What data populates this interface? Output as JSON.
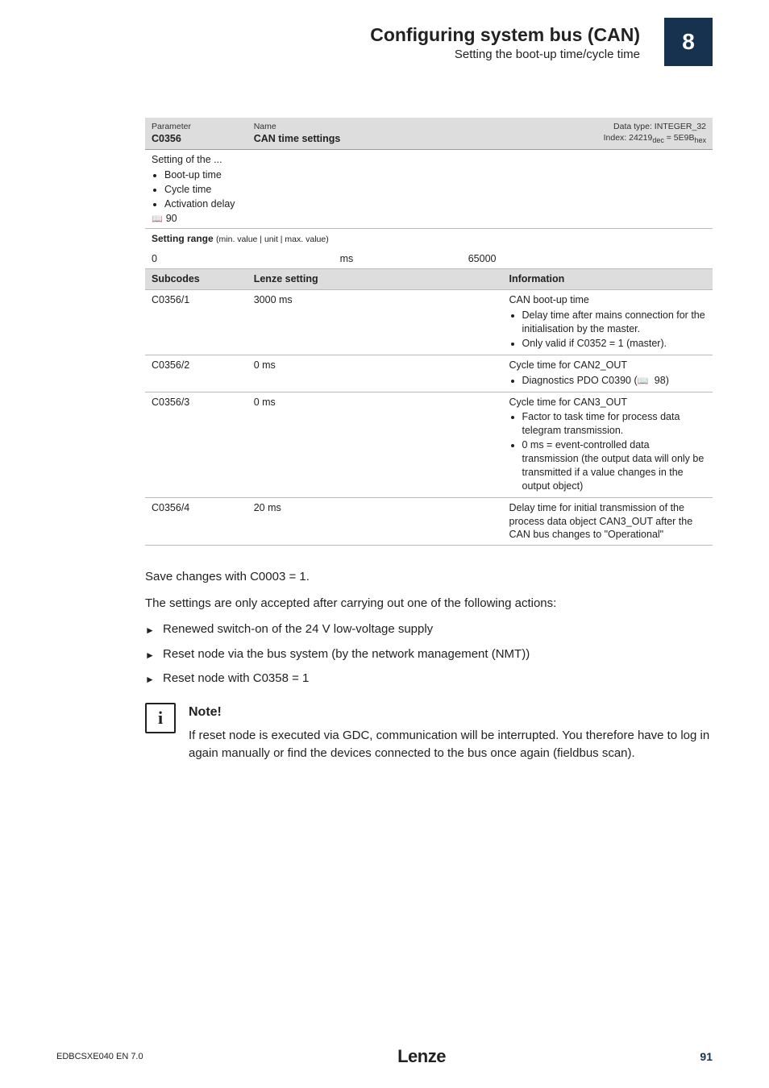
{
  "header": {
    "title": "Configuring system bus (CAN)",
    "subtitle": "Setting the boot-up time/cycle time",
    "chapter": "8"
  },
  "param_header": {
    "param_label": "Parameter",
    "code": "C0356",
    "name_label": "Name",
    "name": "CAN time settings",
    "datatype_line1": "Data type: INTEGER_32",
    "datatype_line2_prefix": "Index: 24219",
    "datatype_line2_sub1": "dec",
    "datatype_line2_mid": " = 5E9B",
    "datatype_line2_sub2": "hex"
  },
  "setting_of": {
    "lead": "Setting of the ...",
    "items": [
      "Boot-up time",
      "Cycle time",
      "Activation delay"
    ],
    "ref": "90"
  },
  "range": {
    "label": "Setting range",
    "small": "(min. value | unit | max. value)",
    "min": "0",
    "unit": "ms",
    "max": "65000"
  },
  "subhdr": {
    "c1": "Subcodes",
    "c2": "Lenze setting",
    "c3": "Information"
  },
  "rows": [
    {
      "sub": "C0356/1",
      "setting": "3000 ms",
      "info_lead": "CAN boot-up time",
      "bullets": [
        "Delay time after mains connection for the initialisation by the master.",
        "Only valid if C0352 = 1 (master)."
      ]
    },
    {
      "sub": "C0356/2",
      "setting": "0 ms",
      "info_lead": "Cycle time for CAN2_OUT",
      "bullets_html": [
        "Diagnostics PDO C0390 (<span class='bookicon'></span> 98)"
      ]
    },
    {
      "sub": "C0356/3",
      "setting": "0 ms",
      "info_lead": "Cycle time for CAN3_OUT",
      "bullets": [
        "Factor to task time for process data telegram transmission.",
        "0 ms = event-controlled data transmission (the output data will only be transmitted if a value changes in the output object)"
      ]
    },
    {
      "sub": "C0356/4",
      "setting": "20 ms",
      "info_lead": "Delay time for initial transmission of the process data object CAN3_OUT after the CAN bus changes to \"Operational\""
    }
  ],
  "body": {
    "p1": "Save changes with C0003 = 1.",
    "p2": "The settings are only accepted after carrying out one of the following actions:",
    "actions": [
      "Renewed switch-on of the 24 V low-voltage supply",
      "Reset node via the bus system (by the network management (NMT))",
      "Reset node with C0358 = 1"
    ]
  },
  "note": {
    "title": "Note!",
    "text": "If reset node is executed via GDC, communication will be interrupted. You therefore have to log in again manually or find the devices connected to the bus once again (fieldbus scan)."
  },
  "footer": {
    "docid": "EDBCSXE040  EN  7.0",
    "logo": "Lenze",
    "page": "91"
  }
}
